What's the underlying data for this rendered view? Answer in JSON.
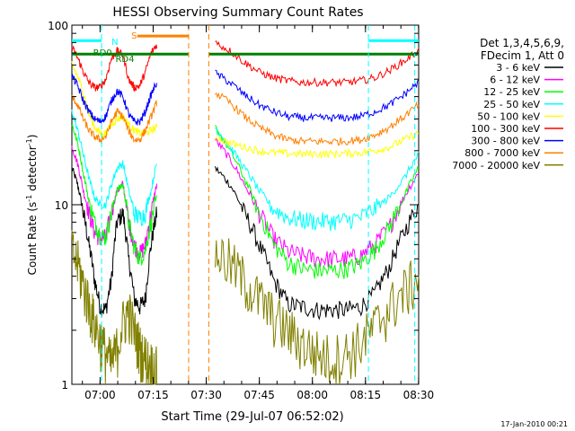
{
  "chart_data": {
    "type": "line",
    "title": "HESSI Observing Summary Count Rates",
    "xlabel": "Start Time (29-Jul-07 06:52:02)",
    "ylabel": "Count Rate (s",
    "ylabel_sup": "-1",
    "ylabel_tail": " detector",
    "ylabel_tail_sup": "-1",
    "ylabel_end": ")",
    "yscale": "log",
    "ylim": [
      1,
      100
    ],
    "xlim_minutes": [
      0,
      98
    ],
    "x_ticks": [
      {
        "label": "07:00",
        "minute": 7.97
      },
      {
        "label": "07:15",
        "minute": 22.97
      },
      {
        "label": "07:30",
        "minute": 37.97
      },
      {
        "label": "07:45",
        "minute": 52.97
      },
      {
        "label": "08:00",
        "minute": 67.97
      },
      {
        "label": "08:15",
        "minute": 82.97
      },
      {
        "label": "08:30",
        "minute": 97.97
      }
    ],
    "y_ticks": [
      {
        "label": "1",
        "value": 1
      },
      {
        "label": "10",
        "value": 10
      },
      {
        "label": "100",
        "value": 100
      }
    ],
    "legend_header": [
      "Det 1,3,4,5,6,9,",
      "FDecim 1, Att 0"
    ],
    "legend_placement": "right",
    "series": [
      {
        "name": "3 - 6 keV",
        "color": "#000000",
        "seg1": [
          16,
          13,
          9,
          6,
          3.8,
          2.7,
          2.6,
          3.8,
          8,
          9,
          5,
          3,
          2.7,
          3,
          6,
          9
        ],
        "seg2": [
          16,
          13,
          9,
          6,
          3.8,
          2.8,
          2.7,
          2.6,
          2.6,
          2.6,
          2.7,
          3.2,
          4.5,
          7,
          10
        ]
      },
      {
        "name": "6 - 12 keV",
        "color": "#ff00ff",
        "seg1": [
          21,
          17,
          12,
          9,
          7,
          6.5,
          6.6,
          9,
          12,
          13,
          8,
          6,
          5.3,
          6,
          9,
          13
        ],
        "seg2": [
          23,
          18,
          13,
          9,
          6.5,
          5.5,
          5.2,
          5,
          5,
          5,
          5.2,
          6,
          7.5,
          11,
          15
        ]
      },
      {
        "name": "12 - 25 keV",
        "color": "#00ff00",
        "seg1": [
          28,
          22,
          15,
          10.5,
          8,
          6.8,
          6.6,
          9,
          12,
          13,
          8,
          5.8,
          5,
          5.6,
          8,
          11
        ],
        "seg2": [
          27,
          20,
          14,
          9,
          6,
          4.8,
          4.4,
          4.3,
          4.3,
          4.4,
          4.7,
          5.6,
          7.5,
          11,
          16
        ]
      },
      {
        "name": "25 - 50 keV",
        "color": "#00ffff",
        "seg1": [
          33,
          26,
          19,
          14,
          11,
          10,
          10,
          13,
          16,
          17,
          12,
          9,
          8.4,
          9,
          12,
          17
        ],
        "seg2": [
          27,
          21,
          16,
          12,
          9.5,
          8.5,
          8.2,
          8.1,
          8.1,
          8.2,
          8.5,
          9.5,
          11,
          14,
          19
        ]
      },
      {
        "name": "50 - 100 keV",
        "color": "#ffff00",
        "seg1": [
          60,
          52,
          42,
          32,
          27,
          25,
          25,
          28,
          30,
          31,
          28,
          26,
          25,
          25,
          26,
          27
        ],
        "seg2": [
          24,
          22,
          21,
          20,
          19.5,
          19.3,
          19.2,
          19.2,
          19.2,
          19.3,
          19.5,
          20,
          21,
          23,
          25
        ]
      },
      {
        "name": "100 - 300 keV",
        "color": "#ff0000",
        "seg1": [
          75,
          66,
          55,
          48,
          45,
          45,
          50,
          65,
          72,
          68,
          50,
          45,
          46,
          55,
          70,
          78
        ],
        "seg2": [
          80,
          72,
          62,
          55,
          51,
          49,
          48,
          48,
          48,
          48,
          49,
          51,
          56,
          63,
          72
        ]
      },
      {
        "name": "300 - 800 keV",
        "color": "#0000ff",
        "seg1": [
          52,
          46,
          38,
          33,
          30,
          29,
          31,
          38,
          43,
          40,
          32,
          29,
          29,
          33,
          41,
          48
        ],
        "seg2": [
          54,
          48,
          41,
          36,
          33,
          31,
          30.5,
          30.4,
          30.4,
          30.5,
          31,
          33,
          36,
          41,
          48
        ]
      },
      {
        "name": "800 - 7000 keV",
        "color": "#ff8000",
        "seg1": [
          40,
          36,
          30,
          26,
          24,
          23,
          24,
          29,
          33,
          31,
          26,
          23,
          23,
          26,
          31,
          37
        ],
        "seg2": [
          42,
          37,
          31,
          27,
          24.5,
          23,
          22.6,
          22.5,
          22.5,
          22.6,
          23,
          24.5,
          27,
          31,
          36
        ]
      },
      {
        "name": "7000 - 20000 keV",
        "color": "#808000",
        "seg1": [
          5.5,
          4.8,
          3.6,
          2.8,
          2.2,
          1.8,
          1.5,
          1.3,
          1.6,
          2.2,
          2.6,
          2.0,
          1.6,
          1.4,
          1.3,
          1.2
        ],
        "seg2": [
          5.5,
          4.8,
          3.8,
          3.0,
          2.4,
          2.0,
          1.7,
          1.5,
          1.4,
          1.5,
          1.7,
          2.1,
          2.7,
          3.3,
          4.0
        ]
      }
    ],
    "annotations": [
      {
        "text": "N",
        "color": "#00ffff"
      },
      {
        "text": "S",
        "color": "#ff8000"
      },
      {
        "text": "RD0",
        "color": "#008000"
      },
      {
        "text": "RD4",
        "color": "#008000"
      }
    ],
    "flag_bars": [
      {
        "name": "night",
        "color": "#00ffff",
        "ranges": [
          [
            0,
            8.4
          ],
          [
            83.8,
            98
          ]
        ],
        "level": 82
      },
      {
        "name": "saa",
        "color": "#ff8000",
        "ranges": [
          [
            18.5,
            33
          ]
        ],
        "level": 87
      },
      {
        "name": "decimation",
        "color": "#008000",
        "ranges": [
          [
            0,
            33
          ],
          [
            38.7,
            98
          ]
        ],
        "level": 69
      }
    ],
    "vlines": [
      {
        "color": "#00ffff",
        "minute": 8.4
      },
      {
        "color": "#ff8000",
        "minute": 33
      },
      {
        "color": "#ff8000",
        "minute": 38.7
      },
      {
        "color": "#00ffff",
        "minute": 83.8
      },
      {
        "color": "#00ffff",
        "minute": 96.9
      }
    ],
    "footer_date": "17-Jan-2010 00:21"
  }
}
